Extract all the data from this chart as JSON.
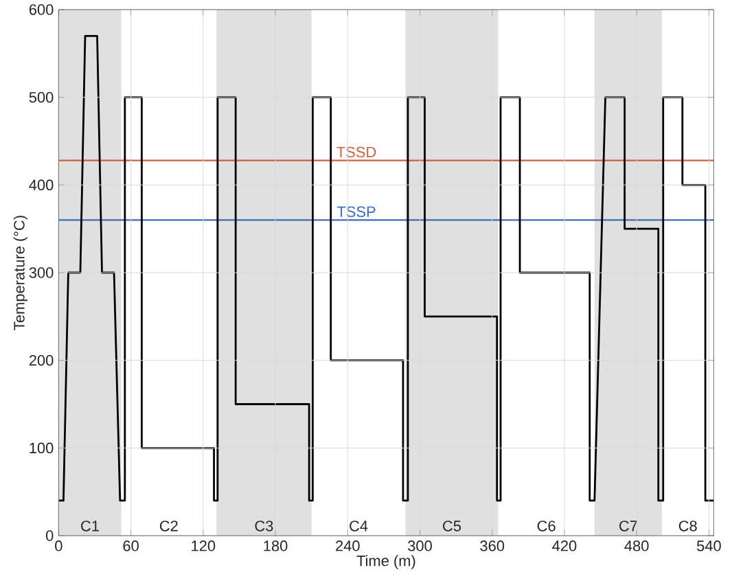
{
  "chart_data": {
    "type": "line",
    "xlabel": "Time (m)",
    "ylabel": "Temperature (°C)",
    "xlim": [
      0,
      544
    ],
    "ylim": [
      0,
      600
    ],
    "xticks": [
      0,
      60,
      120,
      180,
      240,
      300,
      360,
      420,
      480,
      540
    ],
    "yticks": [
      0,
      100,
      200,
      300,
      400,
      500,
      600
    ],
    "grid": true,
    "series": [
      {
        "color": "#000000",
        "x": [
          0,
          4,
          8,
          18,
          22,
          32,
          36,
          46,
          51,
          55,
          55,
          69,
          69,
          129,
          129,
          132,
          132,
          147,
          147,
          208,
          208,
          211,
          211,
          226,
          226,
          286,
          286,
          290,
          290,
          304,
          304,
          364,
          364,
          367,
          367,
          383,
          383,
          441,
          441,
          445,
          454,
          470,
          470,
          498,
          498,
          502,
          502,
          518,
          518,
          537,
          537,
          544
        ],
        "values": [
          40,
          40,
          300,
          300,
          570,
          570,
          300,
          300,
          40,
          40,
          500,
          500,
          100,
          100,
          40,
          40,
          500,
          500,
          150,
          150,
          40,
          40,
          500,
          500,
          200,
          200,
          40,
          40,
          500,
          500,
          250,
          250,
          40,
          40,
          500,
          500,
          300,
          300,
          40,
          40,
          500,
          500,
          350,
          350,
          40,
          40,
          500,
          500,
          400,
          400,
          40,
          40
        ]
      }
    ],
    "ref_lines": [
      {
        "axis": "y",
        "value": 428,
        "label": "TSSD",
        "color": "#c9603f"
      },
      {
        "axis": "y",
        "value": 360,
        "label": "TSSP",
        "color": "#3a6cc0"
      }
    ],
    "bands": [
      {
        "axis": "x",
        "from": 0,
        "to": 52,
        "label": "C1",
        "color": "#e0e0e0"
      },
      {
        "axis": "x",
        "from": 131,
        "to": 210,
        "label": "C3",
        "color": "#e0e0e0"
      },
      {
        "axis": "x",
        "from": 288,
        "to": 365,
        "label": "C5",
        "color": "#e0e0e0"
      },
      {
        "axis": "x",
        "from": 445,
        "to": 501,
        "label": "C7",
        "color": "#e0e0e0"
      }
    ],
    "annotations": [
      "C2",
      "C4",
      "C6",
      "C8"
    ]
  }
}
